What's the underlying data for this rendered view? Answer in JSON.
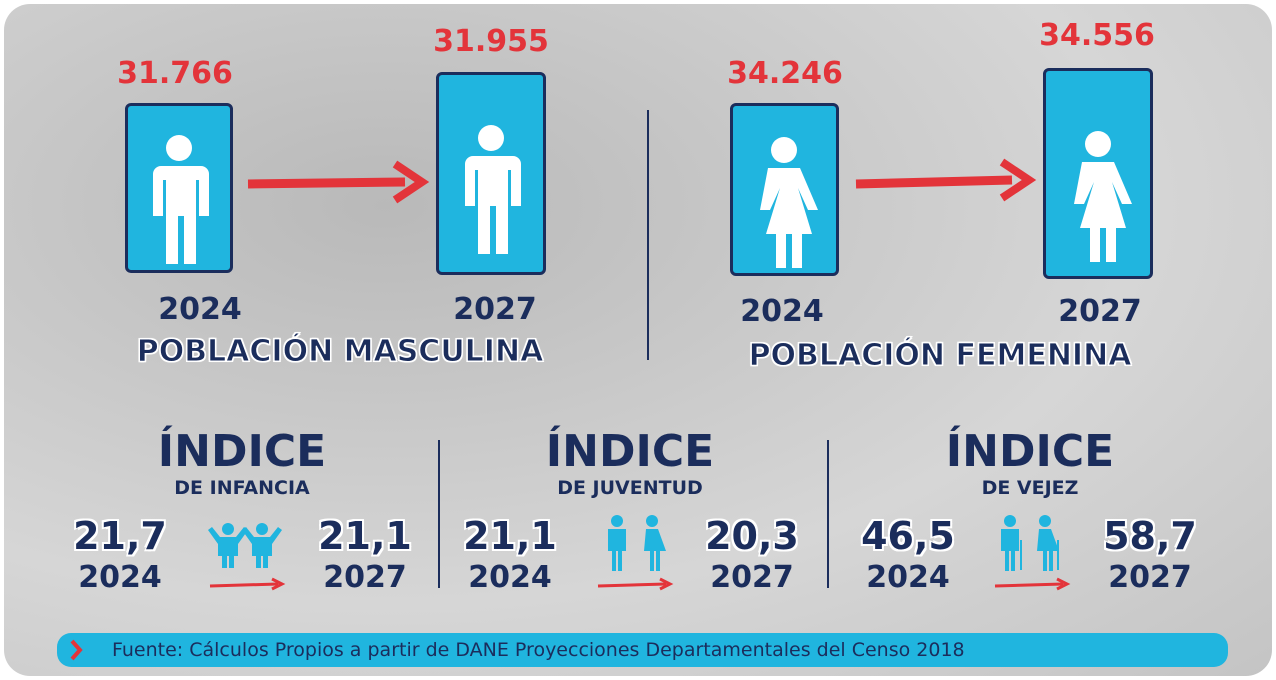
{
  "population": {
    "male": {
      "label": "POBLACIÓN MASCULINA",
      "start": {
        "year": "2024",
        "value": "31.766"
      },
      "end": {
        "year": "2027",
        "value": "31.955"
      }
    },
    "female": {
      "label": "POBLACIÓN FEMENINA",
      "start": {
        "year": "2024",
        "value": "34.246"
      },
      "end": {
        "year": "2027",
        "value": "34.556"
      }
    }
  },
  "indices": [
    {
      "title": "ÍNDICE",
      "subtitle": "DE INFANCIA",
      "start": {
        "value": "21,7",
        "year": "2024"
      },
      "end": {
        "value": "21,1",
        "year": "2027"
      }
    },
    {
      "title": "ÍNDICE",
      "subtitle": "DE JUVENTUD",
      "start": {
        "value": "21,1",
        "year": "2024"
      },
      "end": {
        "value": "20,3",
        "year": "2027"
      }
    },
    {
      "title": "ÍNDICE",
      "subtitle": "DE VEJEZ",
      "start": {
        "value": "46,5",
        "year": "2024"
      },
      "end": {
        "value": "58,7",
        "year": "2027"
      }
    }
  ],
  "source": "Fuente: Cálculos Propios a partir de DANE Proyecciones Departamentales del Censo 2018"
}
